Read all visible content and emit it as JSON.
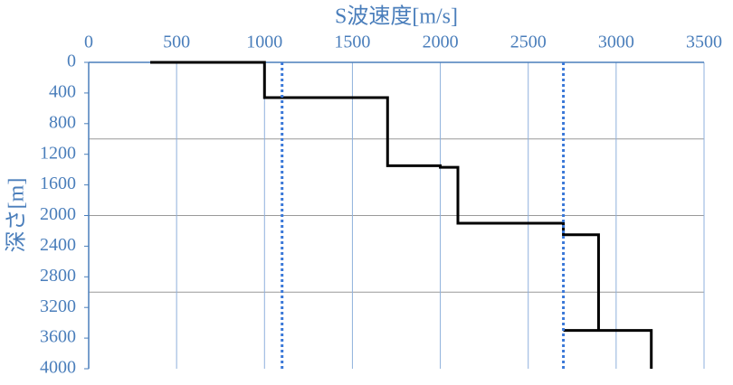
{
  "chart_data": {
    "type": "line",
    "x_title": "S波速度[m/s]",
    "y_title": "深さ[m]",
    "xlim": [
      0,
      3500
    ],
    "xticks": [
      0,
      500,
      1000,
      1500,
      2000,
      2500,
      3000,
      3500
    ],
    "ylim": [
      0,
      4000
    ],
    "yticks": [
      0,
      400,
      800,
      1200,
      1600,
      2000,
      2400,
      2800,
      3200,
      3600,
      4000
    ],
    "y_inverted": true,
    "x_axis_position": "top",
    "x_grid": true,
    "y_gridlines": [
      1000,
      2000,
      3000
    ],
    "axis_color": "#4a7ebb",
    "series": [
      {
        "color": "#000000",
        "linestyle": "solid",
        "x": [
          350,
          1000,
          1000,
          1700,
          1700,
          2000,
          2000,
          2100,
          2100,
          2700,
          2700,
          2900,
          2900,
          2700,
          3200,
          3200
        ],
        "values": [
          0,
          0,
          460,
          460,
          1350,
          1350,
          1370,
          1370,
          2100,
          2100,
          2250,
          2250,
          3500,
          3500,
          3500,
          4000
        ]
      },
      {
        "color": "#3a78d8",
        "linestyle": "dotted",
        "x": [
          1100,
          1100
        ],
        "values": [
          0,
          4000
        ]
      },
      {
        "color": "#3a78d8",
        "linestyle": "dotted",
        "x": [
          2700,
          2700
        ],
        "values": [
          0,
          4000
        ]
      }
    ]
  }
}
